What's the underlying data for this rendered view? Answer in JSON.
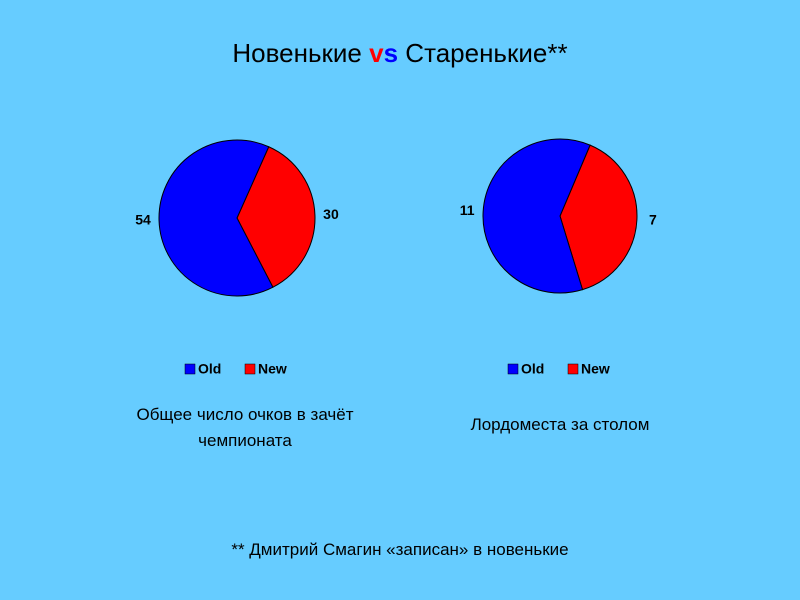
{
  "title": [
    "Новенькие",
    "v",
    "s",
    "Старенькие**"
  ],
  "footnote": "** Дмитрий Смагин «записан» в новенькие",
  "chart_data": [
    {
      "type": "pie",
      "title": "Общее число очков в зачёт чемпионата",
      "categories": [
        "Old",
        "New"
      ],
      "values": [
        54,
        30
      ],
      "colors": [
        "#0000ff",
        "#ff0000"
      ]
    },
    {
      "type": "pie",
      "title": "Лордоместа за столом",
      "categories": [
        "Old",
        "New"
      ],
      "values": [
        11,
        7
      ],
      "colors": [
        "#0000ff",
        "#ff0000"
      ]
    }
  ]
}
